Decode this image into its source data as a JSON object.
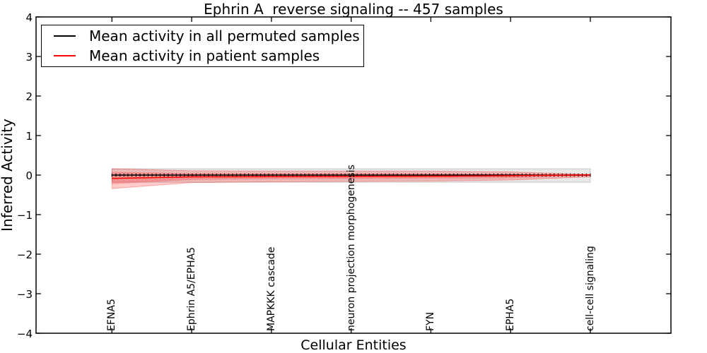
{
  "chart_data": {
    "type": "line",
    "title": "Ephrin A  reverse signaling -- 457 samples",
    "xlabel": "Cellular Entities",
    "ylabel": "Inferred Activity",
    "ylim": [
      -4,
      4
    ],
    "grid": false,
    "legend_position": "upper left",
    "y_tick_labels": [
      "4",
      "3",
      "2",
      "1",
      "0",
      "−1",
      "−2",
      "−3",
      "−4"
    ],
    "y_tick_values": [
      4,
      3,
      2,
      1,
      0,
      -1,
      -2,
      -3,
      -4
    ],
    "x_tick_labels": [
      "EFNA5",
      "Ephrin A5/EPHA5",
      "MAPKKK cascade",
      "neuron projection morphogenesis",
      "FYN",
      "EPHA5",
      "cell-cell signaling"
    ],
    "n_points": 120,
    "series": [
      {
        "name": "Mean activity in all permuted samples",
        "color": "#000000",
        "marker": "vertical-tick",
        "values_at_ticks": [
          0,
          0,
          0,
          0,
          0,
          0,
          0
        ]
      },
      {
        "name": "Mean activity in patient samples",
        "color": "#ff0000",
        "marker": "none",
        "values_at_ticks": [
          -0.085,
          -0.045,
          -0.04,
          -0.035,
          -0.03,
          -0.015,
          0.005
        ]
      }
    ],
    "bands": [
      {
        "name": "permuted-samples-std-band",
        "fill": "rgba(0,0,0,0.09)",
        "edge": "rgba(0,0,0,0.18)",
        "upper_at_ticks": [
          0.16,
          0.16,
          0.16,
          0.16,
          0.16,
          0.16,
          0.16
        ],
        "lower_at_ticks": [
          -0.18,
          -0.18,
          -0.18,
          -0.18,
          -0.18,
          -0.18,
          -0.18
        ]
      },
      {
        "name": "patient-samples-std-outer-band",
        "fill": "rgba(255,0,0,0.20)",
        "edge": "rgba(255,0,0,0.28)",
        "upper_at_ticks": [
          0.16,
          0.11,
          0.1,
          0.1,
          0.1,
          0.08,
          0.02
        ],
        "lower_at_ticks": [
          -0.34,
          -0.19,
          -0.17,
          -0.16,
          -0.15,
          -0.125,
          -0.045
        ]
      },
      {
        "name": "patient-samples-std-inner-band",
        "fill": "rgba(255,0,0,0.22)",
        "edge": "none",
        "upper_at_ticks": [
          0.08,
          0.05,
          0.045,
          0.045,
          0.04,
          0.035,
          0.01
        ],
        "lower_at_ticks": [
          -0.23,
          -0.12,
          -0.1,
          -0.1,
          -0.09,
          -0.075,
          -0.025
        ]
      }
    ]
  }
}
